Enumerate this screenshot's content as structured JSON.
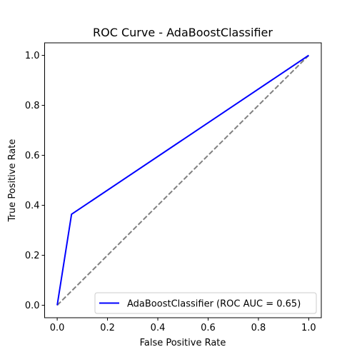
{
  "chart_data": {
    "type": "line",
    "title": "ROC Curve - AdaBoostClassifier",
    "xlabel": "False Positive Rate",
    "ylabel": "True Positive Rate",
    "xlim": [
      -0.05,
      1.05
    ],
    "ylim": [
      -0.05,
      1.05
    ],
    "xticks": [
      0.0,
      0.2,
      0.4,
      0.6,
      0.8,
      1.0
    ],
    "yticks": [
      0.0,
      0.2,
      0.4,
      0.6,
      0.8,
      1.0
    ],
    "xtick_labels": [
      "0.0",
      "0.2",
      "0.4",
      "0.6",
      "0.8",
      "1.0"
    ],
    "ytick_labels": [
      "0.0",
      "0.2",
      "0.4",
      "0.6",
      "0.8",
      "1.0"
    ],
    "grid": false,
    "legend_position": "lower-right",
    "series": [
      {
        "name": "AdaBoostClassifier (ROC AUC = 0.65)",
        "color": "#0000ff",
        "style": "solid",
        "x": [
          0.0,
          0.057,
          1.0
        ],
        "y": [
          0.0,
          0.364,
          1.0
        ]
      }
    ],
    "reference_line": {
      "color": "#808080",
      "style": "dashed",
      "x": [
        0.0,
        1.0
      ],
      "y": [
        0.0,
        1.0
      ]
    }
  }
}
